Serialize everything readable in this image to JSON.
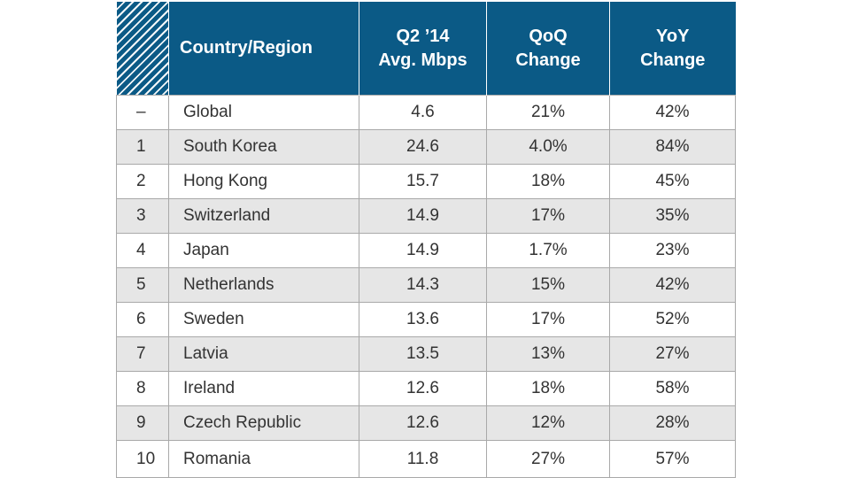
{
  "chart_data": {
    "type": "table",
    "columns": [
      "Country/Region",
      "Q2 ’14 Avg. Mbps",
      "QoQ Change",
      "YoY Change"
    ],
    "header": {
      "country": "Country/Region",
      "speed_line1": "Q2 ’14",
      "speed_line2": "Avg. Mbps",
      "qoq_line1": "QoQ",
      "qoq_line2": "Change",
      "yoy_line1": "YoY",
      "yoy_line2": "Change"
    },
    "rows": [
      {
        "rank": "–",
        "country": "Global",
        "speed": "4.6",
        "qoq": "21%",
        "yoy": "42%"
      },
      {
        "rank": "1",
        "country": "South Korea",
        "speed": "24.6",
        "qoq": "4.0%",
        "yoy": "84%"
      },
      {
        "rank": "2",
        "country": "Hong Kong",
        "speed": "15.7",
        "qoq": "18%",
        "yoy": "45%"
      },
      {
        "rank": "3",
        "country": "Switzerland",
        "speed": "14.9",
        "qoq": "17%",
        "yoy": "35%"
      },
      {
        "rank": "4",
        "country": "Japan",
        "speed": "14.9",
        "qoq": "1.7%",
        "yoy": "23%"
      },
      {
        "rank": "5",
        "country": "Netherlands",
        "speed": "14.3",
        "qoq": "15%",
        "yoy": "42%"
      },
      {
        "rank": "6",
        "country": "Sweden",
        "speed": "13.6",
        "qoq": "17%",
        "yoy": "52%"
      },
      {
        "rank": "7",
        "country": "Latvia",
        "speed": "13.5",
        "qoq": "13%",
        "yoy": "27%"
      },
      {
        "rank": "8",
        "country": "Ireland",
        "speed": "12.6",
        "qoq": "18%",
        "yoy": "58%"
      },
      {
        "rank": "9",
        "country": "Czech Republic",
        "speed": "12.6",
        "qoq": "12%",
        "yoy": "28%"
      },
      {
        "rank": "10",
        "country": "Romania",
        "speed": "11.8",
        "qoq": "27%",
        "yoy": "57%"
      }
    ]
  },
  "colors": {
    "header_bg": "#0b5a86",
    "header_text": "#ffffff",
    "stripe_bg": "#e6e6e6",
    "border": "#a9a9a9",
    "cell_text": "#333333"
  }
}
